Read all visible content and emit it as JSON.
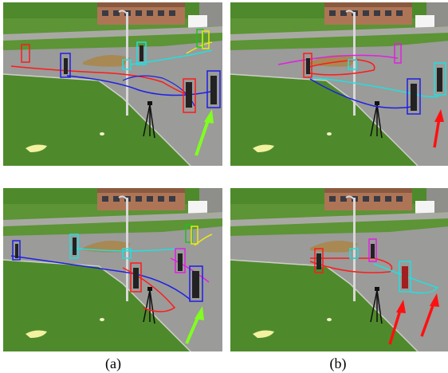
{
  "figure": {
    "panels": [
      {
        "id": "top-left"
      },
      {
        "id": "top-right"
      },
      {
        "id": "bottom-left"
      },
      {
        "id": "bottom-right"
      }
    ],
    "captions": {
      "left": "(a)",
      "right": "(b)"
    },
    "colors": {
      "grass": "#4f8a2a",
      "road": "#9a9a98",
      "building": "#b0785a",
      "track_red": "#ff1a1a",
      "track_blue": "#1e1ee6",
      "track_cyan": "#20e0e0",
      "track_magenta": "#e020e0",
      "track_yellow": "#e8e818",
      "arrow_green": "#80ff20",
      "arrow_red": "#ff1010"
    }
  }
}
